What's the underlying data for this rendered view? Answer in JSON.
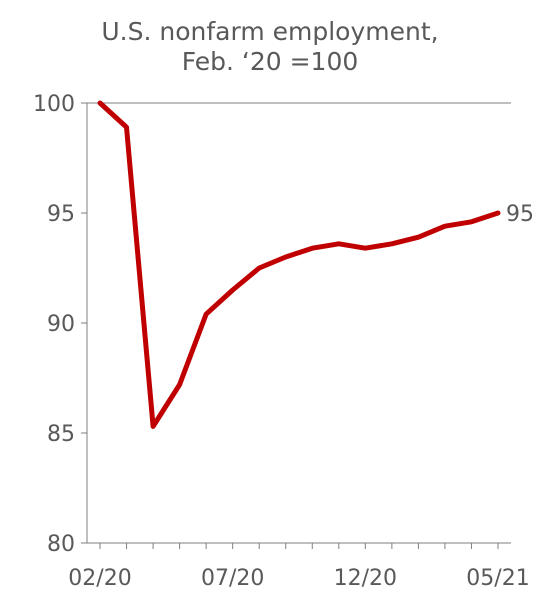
{
  "chart_data": {
    "type": "line",
    "title_lines": [
      "U.S. nonfarm employment,",
      "Feb. ‘20 =100"
    ],
    "xlabel": "",
    "ylabel": "",
    "x": [
      "02/20",
      "03/20",
      "04/20",
      "05/20",
      "06/20",
      "07/20",
      "08/20",
      "09/20",
      "10/20",
      "11/20",
      "12/20",
      "01/21",
      "02/21",
      "03/21",
      "04/21",
      "05/21"
    ],
    "x_tick_labels": [
      "02/20",
      "07/20",
      "12/20",
      "05/21"
    ],
    "y_ticks": [
      80,
      85,
      90,
      95,
      100
    ],
    "ylim": [
      80,
      100
    ],
    "series": [
      {
        "values": [
          100.0,
          98.9,
          85.3,
          87.2,
          90.4,
          91.5,
          92.5,
          93.0,
          93.4,
          93.6,
          93.4,
          93.6,
          93.9,
          94.4,
          94.6,
          95.0
        ],
        "color": "#c00000",
        "end_label": "95"
      }
    ],
    "grid": false,
    "legend": "none"
  }
}
